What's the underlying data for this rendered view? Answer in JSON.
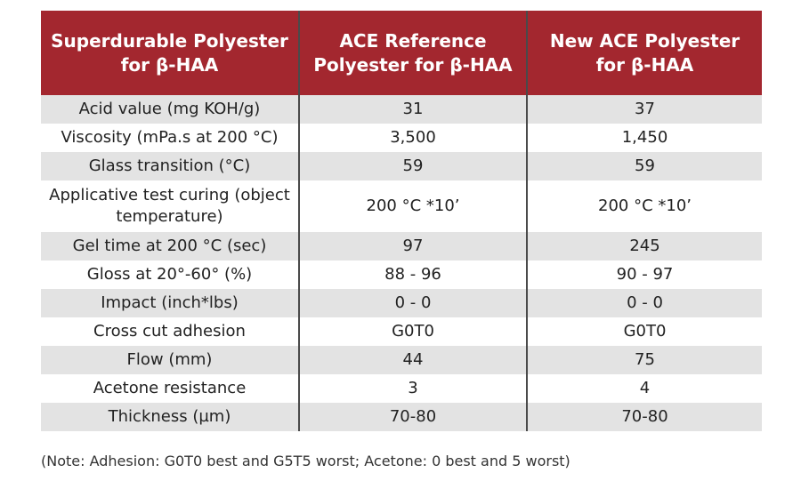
{
  "colors": {
    "header_bg": "#a3272f",
    "header_text": "#ffffff",
    "row_shaded": "#e3e3e3",
    "divider": "#4a4a4a"
  },
  "table": {
    "headers": [
      "Superdurable Polyester for β-HAA",
      "ACE Reference Polyester for β-HAA",
      "New ACE Polyester for β-HAA"
    ],
    "rows": [
      {
        "property": "Acid value (mg KOH/g)",
        "reference": "31",
        "new": "37"
      },
      {
        "property": "Viscosity (mPa.s at 200 °C)",
        "reference": "3,500",
        "new": "1,450"
      },
      {
        "property": "Glass transition (°C)",
        "reference": "59",
        "new": "59"
      },
      {
        "property": "Applicative test curing (object temperature)",
        "reference": "200 °C *10’",
        "new": "200 °C *10’"
      },
      {
        "property": "Gel time at 200 °C (sec)",
        "reference": "97",
        "new": "245"
      },
      {
        "property": "Gloss at 20°-60° (%)",
        "reference": "88 - 96",
        "new": "90 - 97"
      },
      {
        "property": "Impact (inch*lbs)",
        "reference": "0 - 0",
        "new": "0 - 0"
      },
      {
        "property": "Cross cut adhesion",
        "reference": "G0T0",
        "new": "G0T0"
      },
      {
        "property": "Flow (mm)",
        "reference": "44",
        "new": "75"
      },
      {
        "property": "Acetone resistance",
        "reference": "3",
        "new": "4"
      },
      {
        "property": "Thickness (µm)",
        "reference": "70-80",
        "new": "70-80"
      }
    ]
  },
  "note": "(Note: Adhesion: G0T0 best and G5T5 worst; Acetone: 0 best and 5 worst)"
}
